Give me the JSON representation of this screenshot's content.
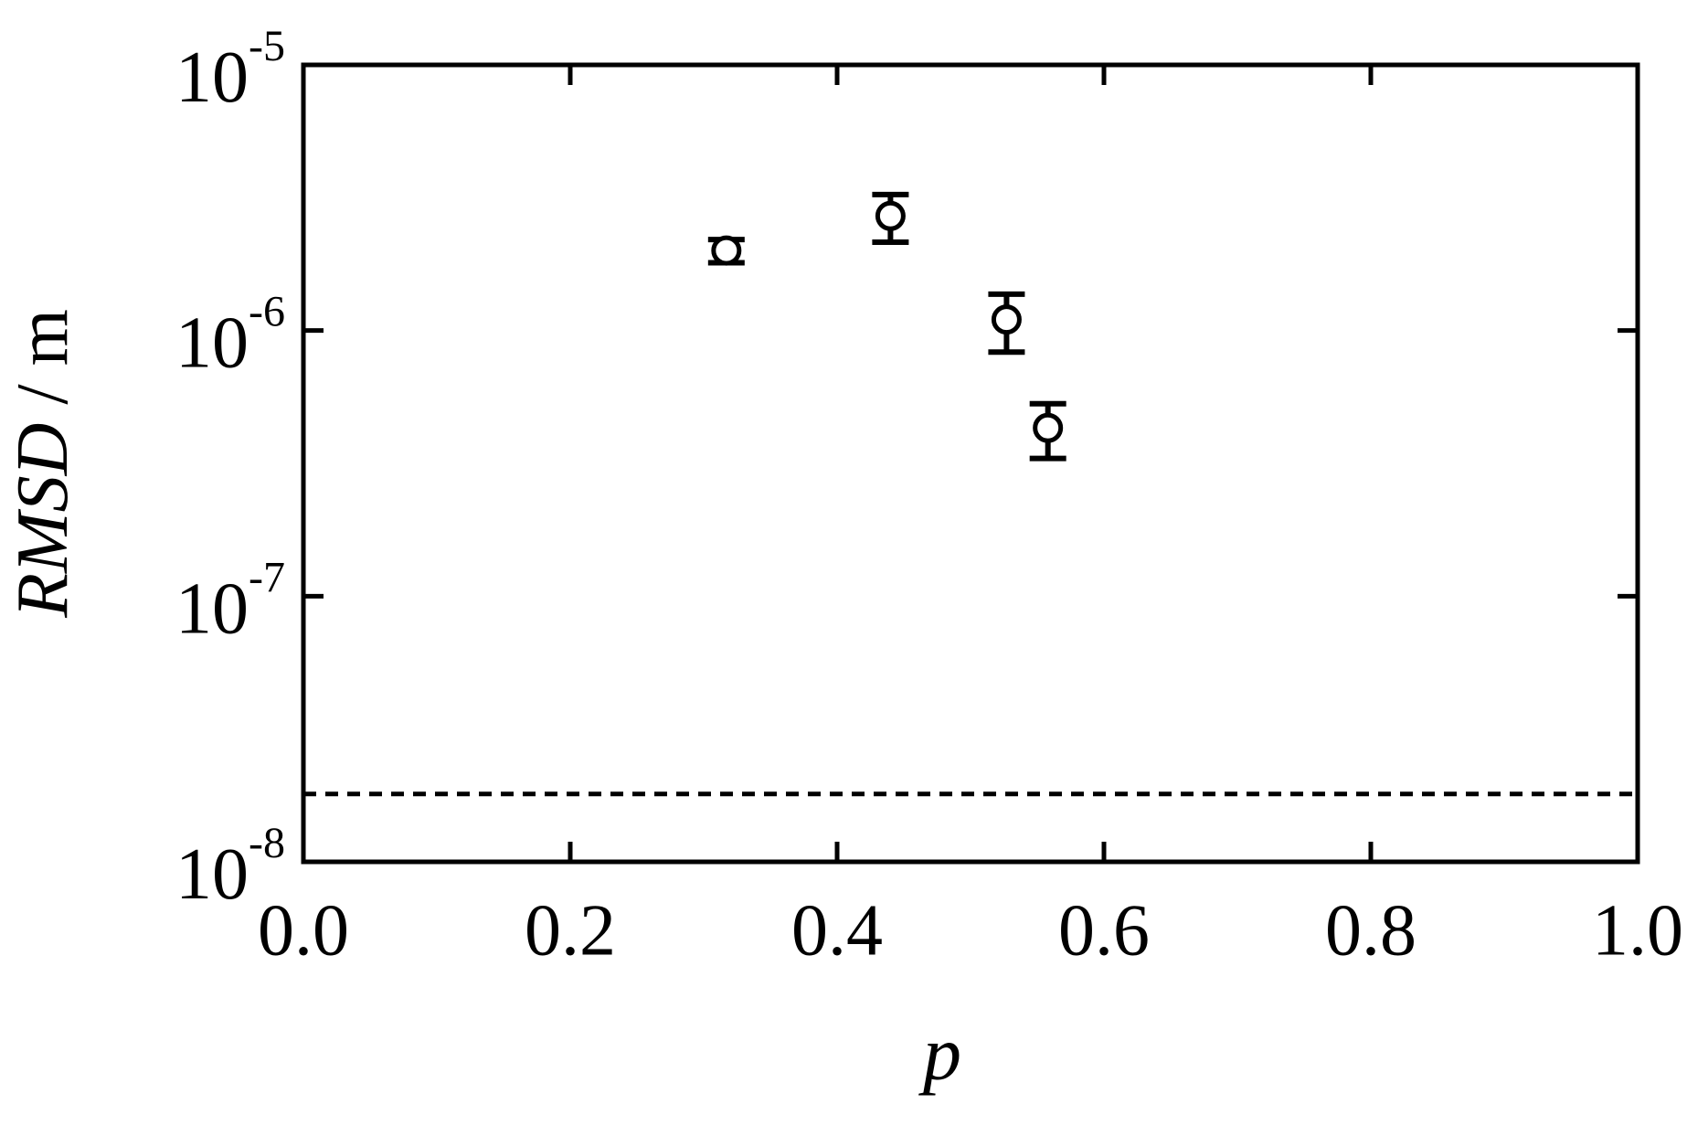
{
  "chart_data": {
    "type": "scatter",
    "x_label": "p",
    "y_label": {
      "variable": "RMSD",
      "unit": "/ m"
    },
    "log_y": true,
    "xlim": [
      0,
      1
    ],
    "xticks": [
      {
        "value": 0,
        "label": "0.0"
      },
      0.2,
      0.4,
      0.6,
      0.8,
      {
        "value": 1,
        "label": "1.0"
      }
    ],
    "ylim": [
      1e-08,
      1e-05
    ],
    "yticks": [
      {
        "value": 1e-08,
        "label": "10",
        "exponent": "-8"
      },
      {
        "value": 1e-07,
        "label": "10",
        "exponent": "-7"
      },
      {
        "value": 1e-06,
        "label": "10",
        "exponent": "-6"
      },
      {
        "value": 1e-05,
        "label": "10",
        "exponent": "-5"
      }
    ],
    "series": [
      {
        "color": "#000000",
        "x": [
          0.317,
          0.44,
          0.527,
          0.558
        ],
        "values": [
          2e-06,
          2.7e-06,
          1.1e-06,
          4.3e-07
        ],
        "errors": [
          2e-07,
          5.5e-07,
          2.7e-07,
          1e-07
        ]
      }
    ],
    "reference_line": 1.8e-08
  }
}
